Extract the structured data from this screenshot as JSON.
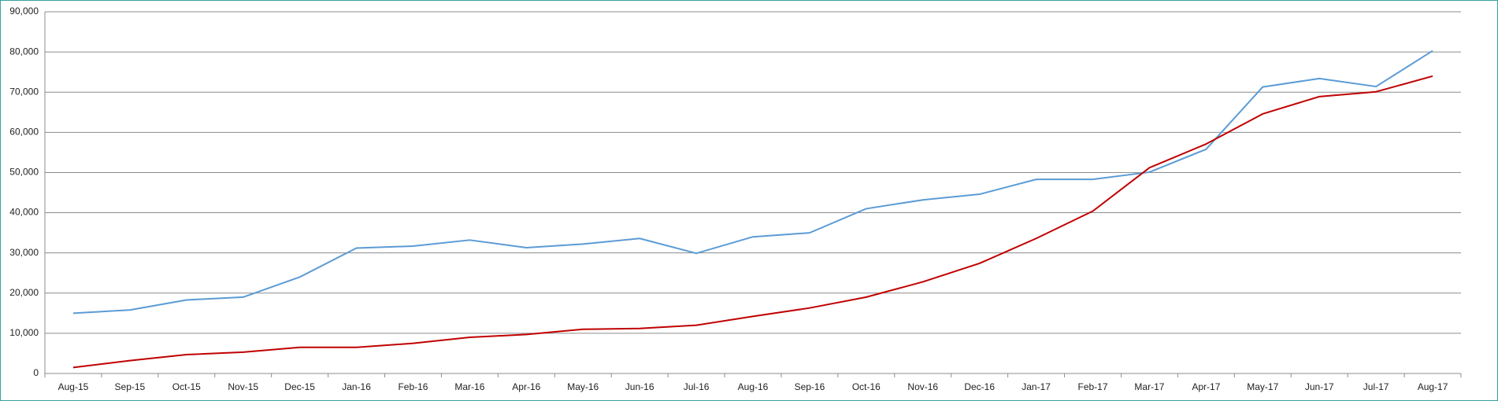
{
  "chart_data": {
    "type": "line",
    "categories": [
      "Aug-15",
      "Sep-15",
      "Oct-15",
      "Nov-15",
      "Dec-15",
      "Jan-16",
      "Feb-16",
      "Mar-16",
      "Apr-16",
      "May-16",
      "Jun-16",
      "Jul-16",
      "Aug-16",
      "Sep-16",
      "Oct-16",
      "Nov-16",
      "Dec-16",
      "Jan-17",
      "Feb-17",
      "Mar-17",
      "Apr-17",
      "May-17",
      "Jun-17",
      "Jul-17",
      "Aug-17"
    ],
    "series": [
      {
        "color": "#5b9bd5",
        "values": [
          15000,
          15800,
          18300,
          19000,
          24000,
          31200,
          31700,
          33200,
          31300,
          32200,
          33600,
          29900,
          34000,
          35000,
          41000,
          43200,
          44600,
          48300,
          48300,
          50100,
          55800,
          71300,
          73400,
          71400,
          80300
        ]
      },
      {
        "color": "#c00000",
        "values": [
          1500,
          3200,
          4700,
          5300,
          6500,
          6500,
          7500,
          9000,
          9700,
          11000,
          11200,
          12000,
          14200,
          16300,
          19000,
          22800,
          27400,
          33600,
          40400,
          51200,
          57100,
          64600,
          68900,
          70100,
          74000
        ]
      }
    ],
    "ylim": [
      0,
      90000
    ],
    "yticks": [
      0,
      {
        "value": 10000,
        "label": "10,000"
      },
      {
        "value": 20000,
        "label": "20,000"
      },
      {
        "value": 30000,
        "label": "30,000"
      },
      {
        "value": 40000,
        "label": "40,000"
      },
      {
        "value": 50000,
        "label": "50,000"
      },
      {
        "value": 60000,
        "label": "60,000"
      },
      {
        "value": 70000,
        "label": "70,000"
      },
      {
        "value": 80000,
        "label": "80,000"
      },
      {
        "value": 90000,
        "label": "90,000"
      }
    ],
    "grid": true
  }
}
